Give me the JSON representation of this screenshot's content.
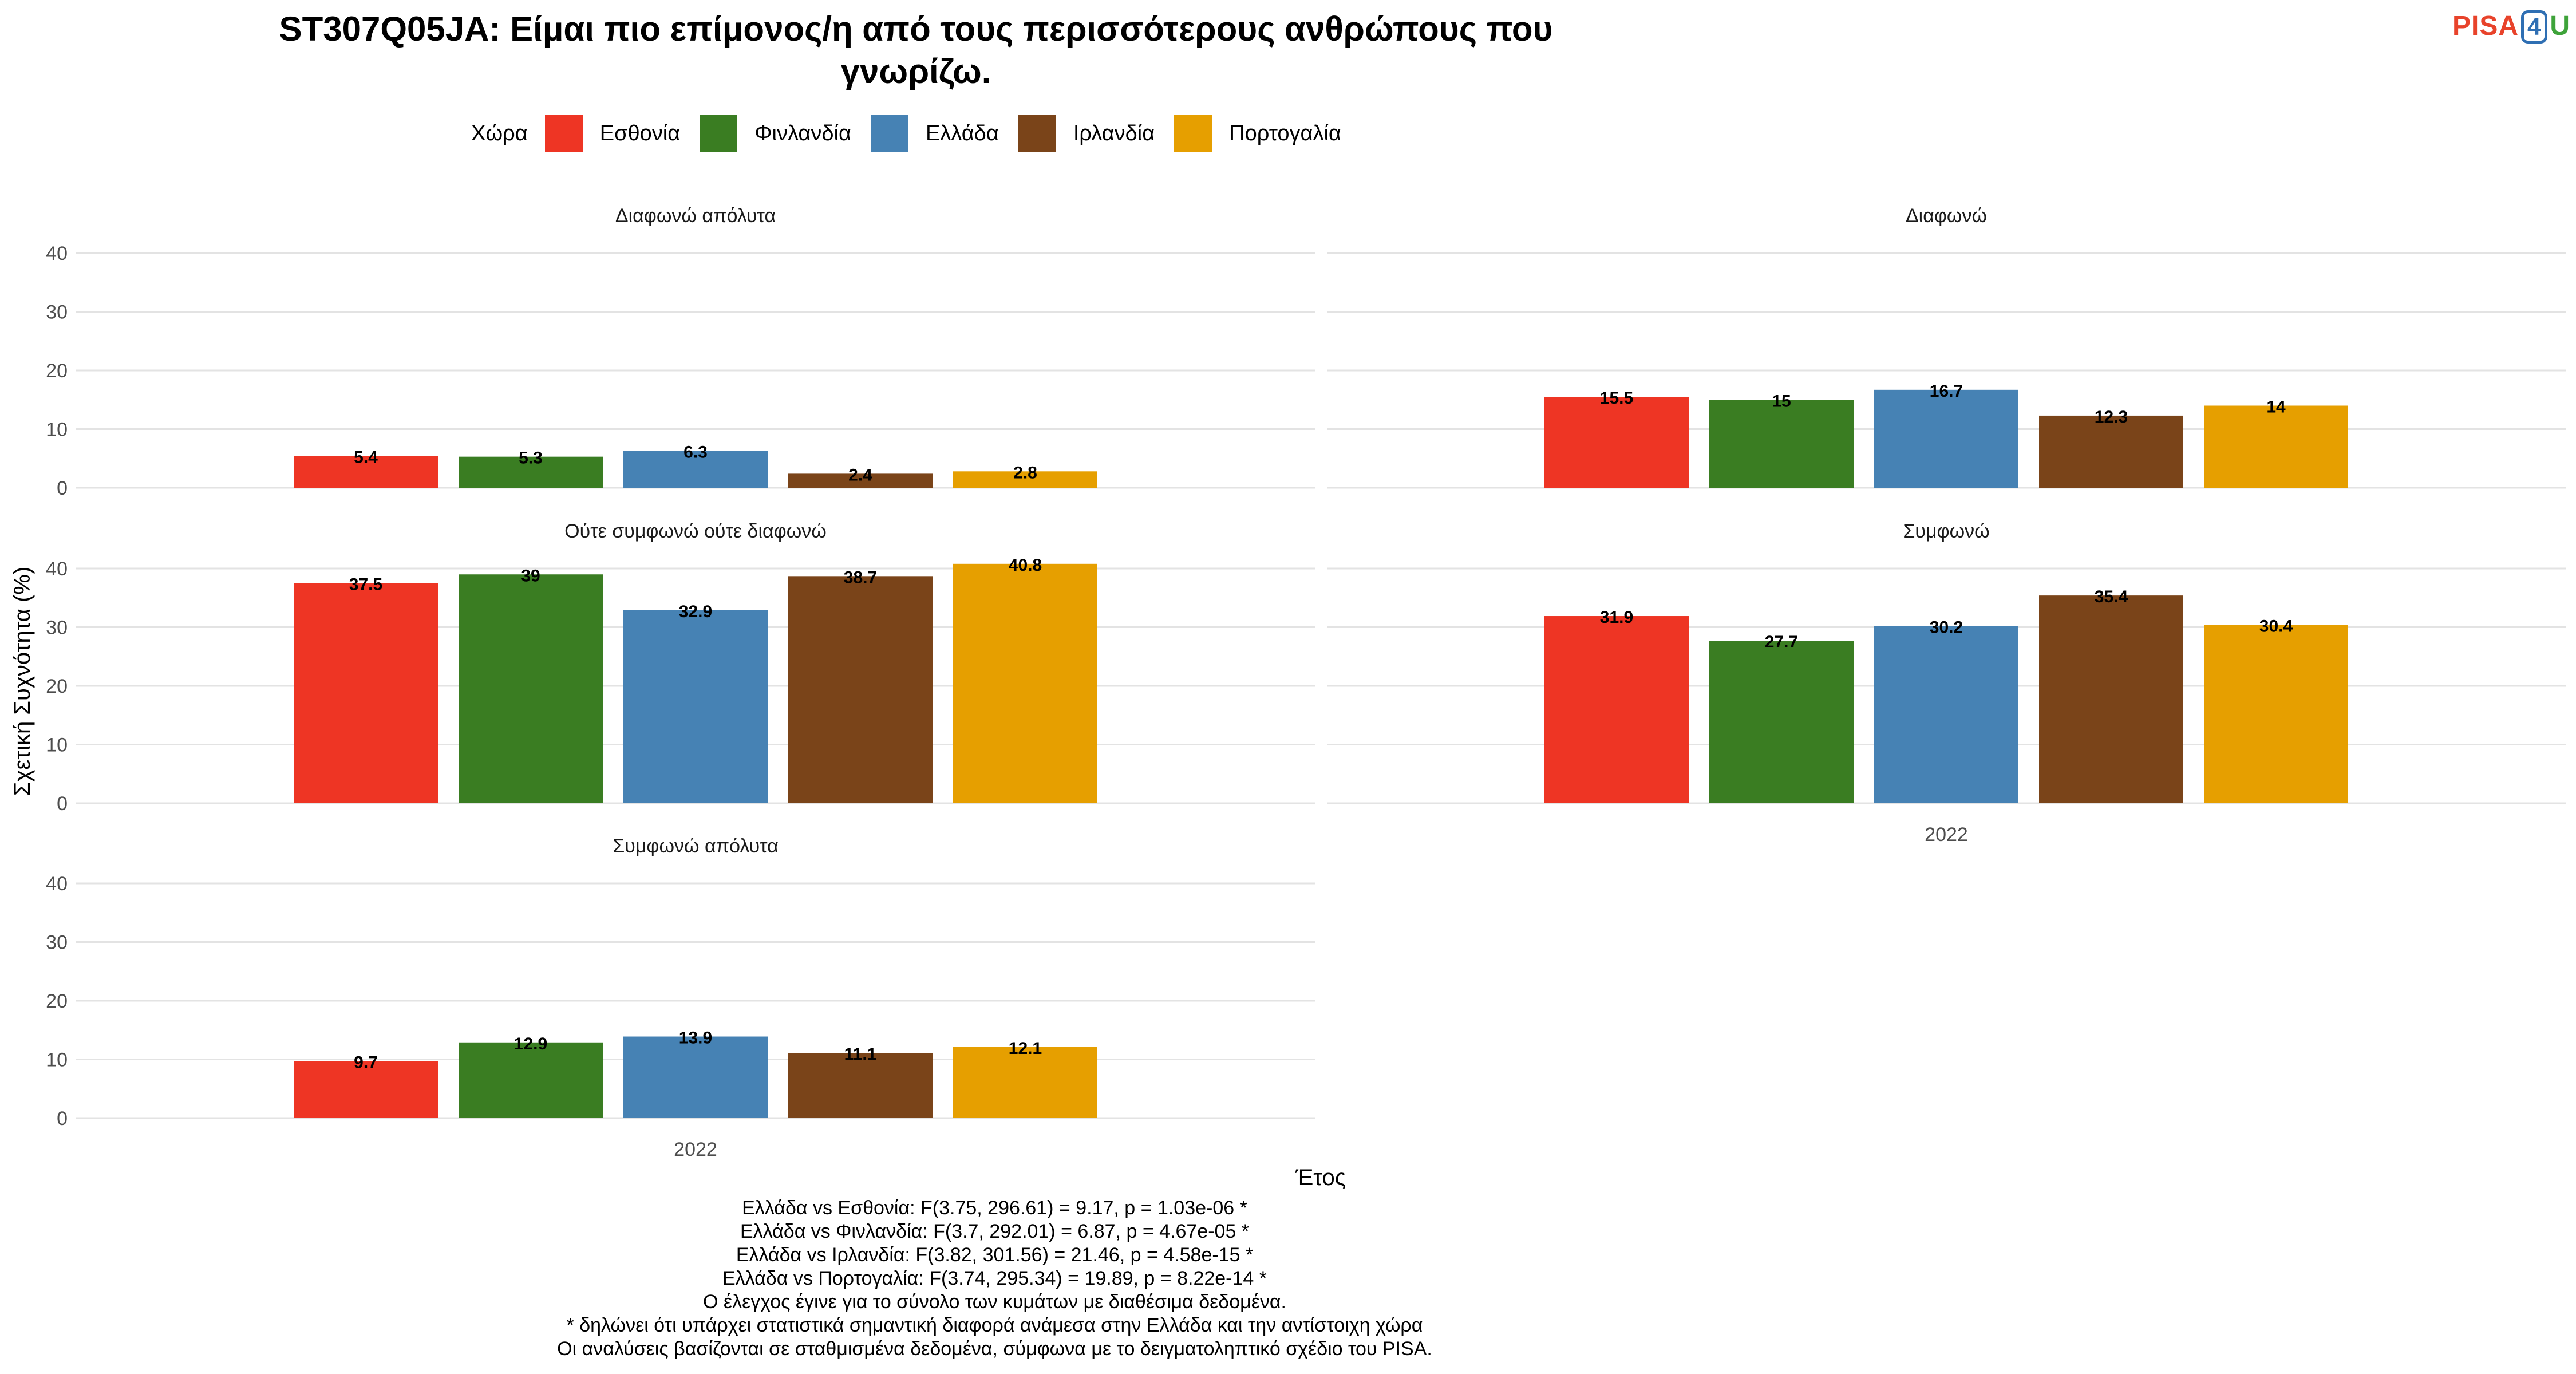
{
  "title_line1": "ST307Q05JA: Είμαι πιο επίμονος/η από τους περισσότερους ανθρώπους που",
  "title_line2": "γνωρίζω.",
  "logo": {
    "part1": "PISA",
    "part2": "4",
    "part3": "U"
  },
  "legend": {
    "title": "Χώρα",
    "items": [
      {
        "label": "Εσθονία",
        "color": "#EE3524"
      },
      {
        "label": "Φινλανδία",
        "color": "#3A7D22"
      },
      {
        "label": "Ελλάδα",
        "color": "#4682B4"
      },
      {
        "label": "Ιρλανδία",
        "color": "#7A4419"
      },
      {
        "label": "Πορτογαλία",
        "color": "#E69F00"
      }
    ]
  },
  "chart_data": {
    "type": "bar",
    "facet_variable": "response",
    "ylabel": "Σχετική Συχνότητα (%)",
    "xlabel": "Έτος",
    "ylim": [
      0,
      40
    ],
    "yticks": [
      0,
      10,
      20,
      30,
      40
    ],
    "grid": true,
    "legend_position": "top",
    "categories": [
      "2022"
    ],
    "series_names": [
      "Εσθονία",
      "Φινλανδία",
      "Ελλάδα",
      "Ιρλανδία",
      "Πορτογαλία"
    ],
    "facets": [
      {
        "title": "Διαφωνώ απόλυτα",
        "values": [
          5.4,
          5.3,
          6.3,
          2.4,
          2.8
        ]
      },
      {
        "title": "Διαφωνώ",
        "values": [
          15.5,
          15,
          16.7,
          12.3,
          14
        ]
      },
      {
        "title": "Ούτε συμφωνώ ούτε διαφωνώ",
        "values": [
          37.5,
          39,
          32.9,
          38.7,
          40.8
        ]
      },
      {
        "title": "Συμφωνώ",
        "values": [
          31.9,
          27.7,
          30.2,
          35.4,
          30.4
        ]
      },
      {
        "title": "Συμφωνώ απόλυτα",
        "values": [
          9.7,
          12.9,
          13.9,
          11.1,
          12.1
        ]
      }
    ]
  },
  "footnotes": [
    "Ελλάδα vs Εσθονία: F(3.75, 296.61) = 9.17, p = 1.03e-06 *",
    "Ελλάδα vs Φινλανδία: F(3.7, 292.01) = 6.87, p = 4.67e-05 *",
    "Ελλάδα vs Ιρλανδία: F(3.82, 301.56) = 21.46, p = 4.58e-15 *",
    "Ελλάδα vs Πορτογαλία: F(3.74, 295.34) = 19.89, p = 8.22e-14 *",
    "Ο έλεγχος έγινε για το σύνολο των κυμάτων με διαθέσιμα δεδομένα.",
    "* δηλώνει ότι υπάρχει στατιστικά σημαντική διαφορά ανάμεσα στην Ελλάδα και την αντίστοιχη χώρα",
    "Οι αναλύσεις βασίζονται σε σταθμισμένα δεδομένα, σύμφωνα με το δειγματοληπτικό σχέδιο του PISA."
  ]
}
